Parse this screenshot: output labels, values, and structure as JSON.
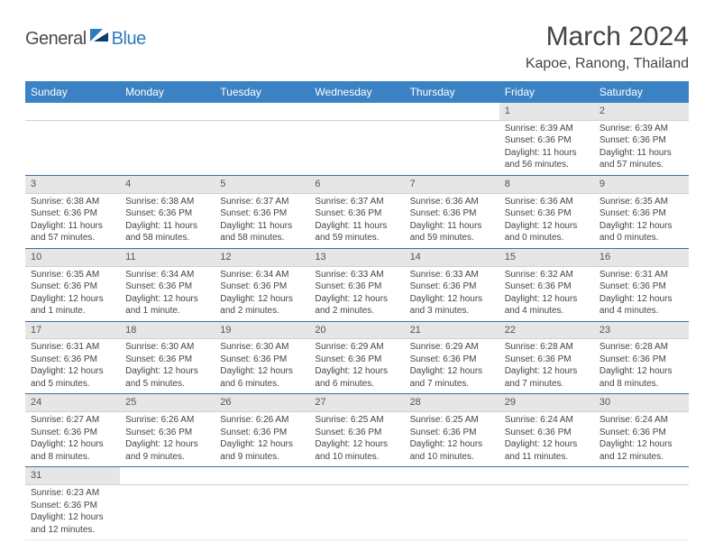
{
  "logo": {
    "general": "General",
    "blue": "Blue"
  },
  "title": "March 2024",
  "location": "Kapoe, Ranong, Thailand",
  "colors": {
    "header_bg": "#3b82c4",
    "header_text": "#ffffff",
    "daynum_bg": "#e6e6e6",
    "rule": "#3b6fa8",
    "logo_blue": "#2b7bbf",
    "text": "#444444"
  },
  "day_headers": [
    "Sunday",
    "Monday",
    "Tuesday",
    "Wednesday",
    "Thursday",
    "Friday",
    "Saturday"
  ],
  "weeks": [
    [
      null,
      null,
      null,
      null,
      null,
      {
        "n": "1",
        "sunrise": "Sunrise: 6:39 AM",
        "sunset": "Sunset: 6:36 PM",
        "daylight": "Daylight: 11 hours and 56 minutes."
      },
      {
        "n": "2",
        "sunrise": "Sunrise: 6:39 AM",
        "sunset": "Sunset: 6:36 PM",
        "daylight": "Daylight: 11 hours and 57 minutes."
      }
    ],
    [
      {
        "n": "3",
        "sunrise": "Sunrise: 6:38 AM",
        "sunset": "Sunset: 6:36 PM",
        "daylight": "Daylight: 11 hours and 57 minutes."
      },
      {
        "n": "4",
        "sunrise": "Sunrise: 6:38 AM",
        "sunset": "Sunset: 6:36 PM",
        "daylight": "Daylight: 11 hours and 58 minutes."
      },
      {
        "n": "5",
        "sunrise": "Sunrise: 6:37 AM",
        "sunset": "Sunset: 6:36 PM",
        "daylight": "Daylight: 11 hours and 58 minutes."
      },
      {
        "n": "6",
        "sunrise": "Sunrise: 6:37 AM",
        "sunset": "Sunset: 6:36 PM",
        "daylight": "Daylight: 11 hours and 59 minutes."
      },
      {
        "n": "7",
        "sunrise": "Sunrise: 6:36 AM",
        "sunset": "Sunset: 6:36 PM",
        "daylight": "Daylight: 11 hours and 59 minutes."
      },
      {
        "n": "8",
        "sunrise": "Sunrise: 6:36 AM",
        "sunset": "Sunset: 6:36 PM",
        "daylight": "Daylight: 12 hours and 0 minutes."
      },
      {
        "n": "9",
        "sunrise": "Sunrise: 6:35 AM",
        "sunset": "Sunset: 6:36 PM",
        "daylight": "Daylight: 12 hours and 0 minutes."
      }
    ],
    [
      {
        "n": "10",
        "sunrise": "Sunrise: 6:35 AM",
        "sunset": "Sunset: 6:36 PM",
        "daylight": "Daylight: 12 hours and 1 minute."
      },
      {
        "n": "11",
        "sunrise": "Sunrise: 6:34 AM",
        "sunset": "Sunset: 6:36 PM",
        "daylight": "Daylight: 12 hours and 1 minute."
      },
      {
        "n": "12",
        "sunrise": "Sunrise: 6:34 AM",
        "sunset": "Sunset: 6:36 PM",
        "daylight": "Daylight: 12 hours and 2 minutes."
      },
      {
        "n": "13",
        "sunrise": "Sunrise: 6:33 AM",
        "sunset": "Sunset: 6:36 PM",
        "daylight": "Daylight: 12 hours and 2 minutes."
      },
      {
        "n": "14",
        "sunrise": "Sunrise: 6:33 AM",
        "sunset": "Sunset: 6:36 PM",
        "daylight": "Daylight: 12 hours and 3 minutes."
      },
      {
        "n": "15",
        "sunrise": "Sunrise: 6:32 AM",
        "sunset": "Sunset: 6:36 PM",
        "daylight": "Daylight: 12 hours and 4 minutes."
      },
      {
        "n": "16",
        "sunrise": "Sunrise: 6:31 AM",
        "sunset": "Sunset: 6:36 PM",
        "daylight": "Daylight: 12 hours and 4 minutes."
      }
    ],
    [
      {
        "n": "17",
        "sunrise": "Sunrise: 6:31 AM",
        "sunset": "Sunset: 6:36 PM",
        "daylight": "Daylight: 12 hours and 5 minutes."
      },
      {
        "n": "18",
        "sunrise": "Sunrise: 6:30 AM",
        "sunset": "Sunset: 6:36 PM",
        "daylight": "Daylight: 12 hours and 5 minutes."
      },
      {
        "n": "19",
        "sunrise": "Sunrise: 6:30 AM",
        "sunset": "Sunset: 6:36 PM",
        "daylight": "Daylight: 12 hours and 6 minutes."
      },
      {
        "n": "20",
        "sunrise": "Sunrise: 6:29 AM",
        "sunset": "Sunset: 6:36 PM",
        "daylight": "Daylight: 12 hours and 6 minutes."
      },
      {
        "n": "21",
        "sunrise": "Sunrise: 6:29 AM",
        "sunset": "Sunset: 6:36 PM",
        "daylight": "Daylight: 12 hours and 7 minutes."
      },
      {
        "n": "22",
        "sunrise": "Sunrise: 6:28 AM",
        "sunset": "Sunset: 6:36 PM",
        "daylight": "Daylight: 12 hours and 7 minutes."
      },
      {
        "n": "23",
        "sunrise": "Sunrise: 6:28 AM",
        "sunset": "Sunset: 6:36 PM",
        "daylight": "Daylight: 12 hours and 8 minutes."
      }
    ],
    [
      {
        "n": "24",
        "sunrise": "Sunrise: 6:27 AM",
        "sunset": "Sunset: 6:36 PM",
        "daylight": "Daylight: 12 hours and 8 minutes."
      },
      {
        "n": "25",
        "sunrise": "Sunrise: 6:26 AM",
        "sunset": "Sunset: 6:36 PM",
        "daylight": "Daylight: 12 hours and 9 minutes."
      },
      {
        "n": "26",
        "sunrise": "Sunrise: 6:26 AM",
        "sunset": "Sunset: 6:36 PM",
        "daylight": "Daylight: 12 hours and 9 minutes."
      },
      {
        "n": "27",
        "sunrise": "Sunrise: 6:25 AM",
        "sunset": "Sunset: 6:36 PM",
        "daylight": "Daylight: 12 hours and 10 minutes."
      },
      {
        "n": "28",
        "sunrise": "Sunrise: 6:25 AM",
        "sunset": "Sunset: 6:36 PM",
        "daylight": "Daylight: 12 hours and 10 minutes."
      },
      {
        "n": "29",
        "sunrise": "Sunrise: 6:24 AM",
        "sunset": "Sunset: 6:36 PM",
        "daylight": "Daylight: 12 hours and 11 minutes."
      },
      {
        "n": "30",
        "sunrise": "Sunrise: 6:24 AM",
        "sunset": "Sunset: 6:36 PM",
        "daylight": "Daylight: 12 hours and 12 minutes."
      }
    ],
    [
      {
        "n": "31",
        "sunrise": "Sunrise: 6:23 AM",
        "sunset": "Sunset: 6:36 PM",
        "daylight": "Daylight: 12 hours and 12 minutes."
      },
      null,
      null,
      null,
      null,
      null,
      null
    ]
  ]
}
